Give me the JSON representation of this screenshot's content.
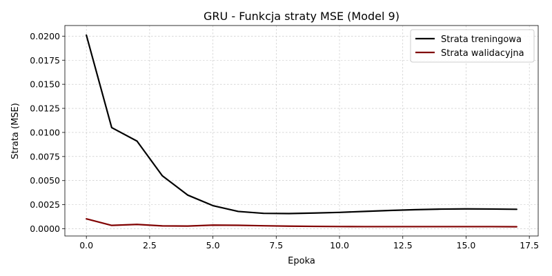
{
  "chart_data": {
    "type": "line",
    "title": "GRU - Funkcja straty MSE (Model 9)",
    "xlabel": "Epoka",
    "ylabel": "Strata (MSE)",
    "xlim": [
      -0.85,
      17.85
    ],
    "ylim": [
      -0.00075,
      0.0211
    ],
    "xticks": [
      0.0,
      2.5,
      5.0,
      7.5,
      10.0,
      12.5,
      15.0,
      17.5
    ],
    "xtick_labels": [
      "0.0",
      "2.5",
      "5.0",
      "7.5",
      "10.0",
      "12.5",
      "15.0",
      "17.5"
    ],
    "yticks": [
      0.0,
      0.0025,
      0.005,
      0.0075,
      0.01,
      0.0125,
      0.015,
      0.0175,
      0.02
    ],
    "ytick_labels": [
      "0.0000",
      "0.0025",
      "0.0050",
      "0.0075",
      "0.0100",
      "0.0125",
      "0.0150",
      "0.0175",
      "0.0200"
    ],
    "grid": true,
    "legend_position": "top-right",
    "x": [
      0,
      1,
      2,
      3,
      4,
      5,
      6,
      7,
      8,
      9,
      10,
      11,
      12,
      13,
      14,
      15,
      16,
      17
    ],
    "series": [
      {
        "name": "Strata treningowa",
        "color": "#000000",
        "values": [
          0.0201,
          0.0105,
          0.0091,
          0.0055,
          0.0035,
          0.0024,
          0.0018,
          0.0016,
          0.00158,
          0.00163,
          0.0017,
          0.0018,
          0.0019,
          0.00198,
          0.00204,
          0.00206,
          0.00205,
          0.00202
        ]
      },
      {
        "name": "Strata walidacyjna",
        "color": "#800000",
        "values": [
          0.00103,
          0.00035,
          0.00045,
          0.0003,
          0.00028,
          0.00038,
          0.00036,
          0.00031,
          0.00027,
          0.00025,
          0.00023,
          0.00022,
          0.00022,
          0.00022,
          0.00022,
          0.00022,
          0.00022,
          0.00021
        ]
      }
    ]
  }
}
